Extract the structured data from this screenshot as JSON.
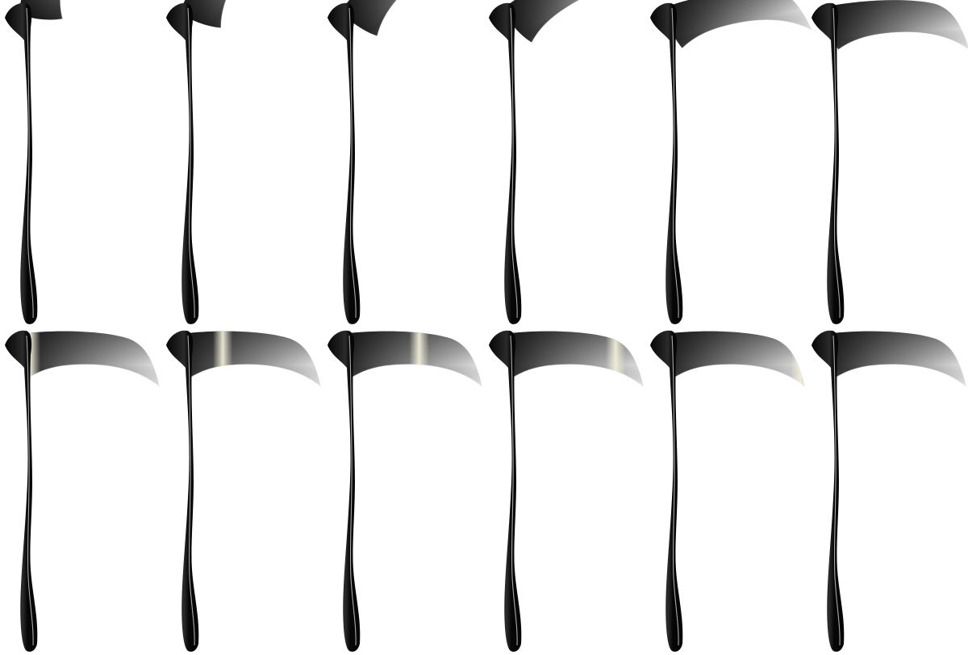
{
  "sprite_sheet": {
    "subject": "scythe",
    "columns": 6,
    "rows": 2,
    "frames": [
      {
        "angle": -72,
        "shine": null
      },
      {
        "angle": -58,
        "shine": null
      },
      {
        "angle": -44,
        "shine": null
      },
      {
        "angle": -30,
        "shine": null
      },
      {
        "angle": -12,
        "shine": null
      },
      {
        "angle": -4,
        "shine": null
      },
      {
        "angle": 0,
        "shine": 0.08
      },
      {
        "angle": 0,
        "shine": 0.3
      },
      {
        "angle": 0,
        "shine": 0.55
      },
      {
        "angle": 0,
        "shine": 0.8
      },
      {
        "angle": 0,
        "shine": 0.97
      },
      {
        "angle": 0,
        "shine": null
      }
    ]
  },
  "colors": {
    "background": "#ffffff",
    "handle": "#060606",
    "handle_highlight": "#bdbdbd",
    "blade_dark": "#1c1c1c",
    "blade_mid": "#7a7a7a",
    "blade_light": "#e2e2e2",
    "shine": "#f0edd8"
  }
}
